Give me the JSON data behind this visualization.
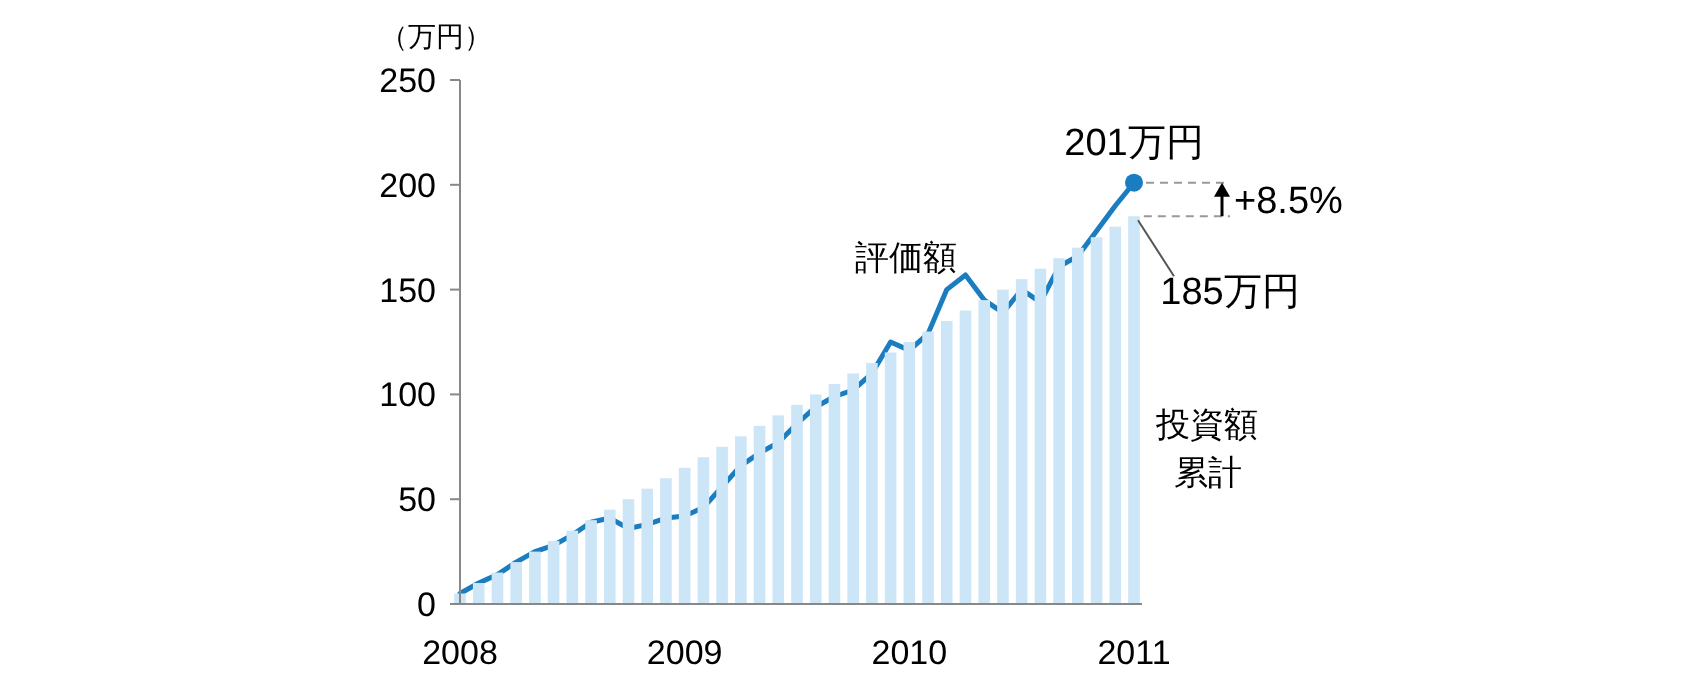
{
  "chart_data": {
    "type": "bar",
    "ylabel": "（万円）",
    "categories": [
      "2008",
      null,
      null,
      null,
      null,
      null,
      null,
      null,
      null,
      null,
      null,
      null,
      "2009",
      null,
      null,
      null,
      null,
      null,
      null,
      null,
      null,
      null,
      null,
      null,
      "2010",
      null,
      null,
      null,
      null,
      null,
      null,
      null,
      null,
      null,
      null,
      null,
      "2011"
    ],
    "ylim": [
      0,
      250
    ],
    "yticks": [
      0,
      50,
      100,
      150,
      200,
      250
    ],
    "grid": false,
    "legend": false,
    "marker": "none",
    "line_style": "solid",
    "series": [
      {
        "name": "投資額累計",
        "color": "#cce6f8",
        "values": [
          5,
          10,
          15,
          20,
          25,
          30,
          35,
          40,
          45,
          50,
          55,
          60,
          65,
          70,
          75,
          80,
          85,
          90,
          95,
          100,
          105,
          110,
          115,
          120,
          125,
          130,
          135,
          140,
          145,
          150,
          155,
          160,
          165,
          170,
          175,
          180,
          185
        ]
      },
      {
        "name": "評価額",
        "type": "line",
        "color": "#1a7dc0",
        "values": [
          5,
          10,
          14,
          20,
          25,
          28,
          33,
          39,
          41,
          36,
          38,
          41,
          42,
          46,
          56,
          66,
          72,
          77,
          86,
          94,
          99,
          102,
          110,
          125,
          121,
          129,
          150,
          157,
          145,
          139,
          150,
          144,
          161,
          166,
          178,
          190,
          201
        ]
      }
    ],
    "annotations": [
      {
        "text": "201万円",
        "x": "2011",
        "y": 201
      },
      "+8.5%",
      "185万円"
    ]
  }
}
